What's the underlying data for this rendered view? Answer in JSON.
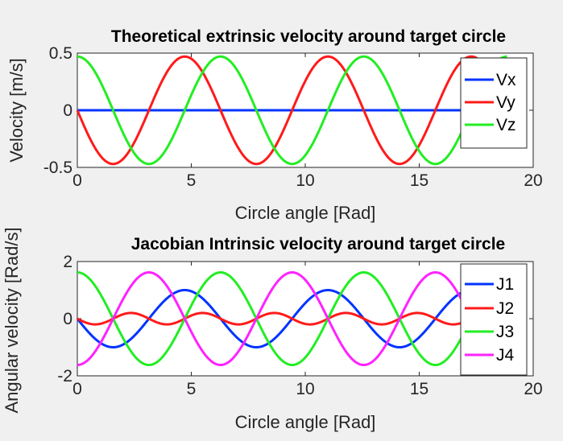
{
  "colors": {
    "background": "#f0f0f0",
    "axes": "#ffffff",
    "blue": "#0033ff",
    "red": "#ff1a1a",
    "green": "#22ee22",
    "magenta": "#ff22ff"
  },
  "chart_data": [
    {
      "type": "line",
      "title": "Theoretical extrinsic velocity around target circle",
      "xlabel": "Circle angle [Rad]",
      "ylabel": "Velocity [m/s]",
      "xlim": [
        0,
        20
      ],
      "ylim": [
        -0.5,
        0.5
      ],
      "x_range": [
        0,
        18.85
      ],
      "xticks": [
        0,
        5,
        10,
        15,
        20
      ],
      "yticks": [
        -0.5,
        0,
        0.5
      ],
      "xtick_labels": [
        "0",
        "5",
        "10",
        "15",
        "20"
      ],
      "ytick_labels": [
        "-0.5",
        "0",
        "0.5"
      ],
      "grid": false,
      "legend_position": "top-right",
      "series": [
        {
          "name": "Vx",
          "color": "#0033ff",
          "amplitude": 0,
          "frequency": 1,
          "phase": 0
        },
        {
          "name": "Vy",
          "color": "#ff1a1a",
          "amplitude": -0.47,
          "frequency": 1,
          "phase": 0
        },
        {
          "name": "Vz",
          "color": "#22ee22",
          "amplitude": 0.47,
          "frequency": 1,
          "phase": 1.5708
        }
      ]
    },
    {
      "type": "line",
      "title": "Jacobian Intrinsic velocity around target circle",
      "xlabel": "Circle angle [Rad]",
      "ylabel": "Angular velocity [Rad/s]",
      "xlim": [
        0,
        20
      ],
      "ylim": [
        -2,
        2
      ],
      "x_range": [
        0,
        18.85
      ],
      "xticks": [
        0,
        5,
        10,
        15,
        20
      ],
      "yticks": [
        -2,
        0,
        2
      ],
      "xtick_labels": [
        "0",
        "5",
        "10",
        "15",
        "20"
      ],
      "ytick_labels": [
        "-2",
        "0",
        "2"
      ],
      "grid": false,
      "legend_position": "top-right",
      "series": [
        {
          "name": "J1",
          "color": "#0033ff",
          "amplitude": -1.0,
          "frequency": 1,
          "phase": 0
        },
        {
          "name": "J2",
          "color": "#ff1a1a",
          "amplitude": -0.2,
          "frequency": 2,
          "phase": 0
        },
        {
          "name": "J3",
          "color": "#22ee22",
          "amplitude": 1.62,
          "frequency": 1,
          "phase": 1.5708
        },
        {
          "name": "J4",
          "color": "#ff22ff",
          "amplitude": -1.62,
          "frequency": 1,
          "phase": 1.5708
        }
      ]
    }
  ]
}
